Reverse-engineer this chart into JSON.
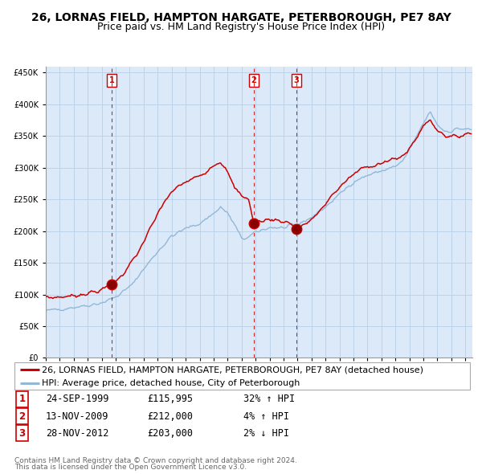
{
  "title": "26, LORNAS FIELD, HAMPTON HARGATE, PETERBOROUGH, PE7 8AY",
  "subtitle": "Price paid vs. HM Land Registry's House Price Index (HPI)",
  "legend_line1": "26, LORNAS FIELD, HAMPTON HARGATE, PETERBOROUGH, PE7 8AY (detached house)",
  "legend_line2": "HPI: Average price, detached house, City of Peterborough",
  "sale_events": [
    {
      "label": "1",
      "date": "24-SEP-1999",
      "price": 115995,
      "price_str": "£115,995",
      "pct": "32%",
      "dir": "↑",
      "year": 1999.73
    },
    {
      "label": "2",
      "date": "13-NOV-2009",
      "price": 212000,
      "price_str": "£212,000",
      "pct": "4%",
      "dir": "↑",
      "year": 2009.87
    },
    {
      "label": "3",
      "date": "28-NOV-2012",
      "price": 203000,
      "price_str": "£203,000",
      "pct": "2%",
      "dir": "↓",
      "year": 2012.91
    }
  ],
  "footer_line1": "Contains HM Land Registry data © Crown copyright and database right 2024.",
  "footer_line2": "This data is licensed under the Open Government Licence v3.0.",
  "ylim": [
    0,
    460000
  ],
  "xlim_start": 1995.0,
  "xlim_end": 2025.5,
  "plot_bg_color": "#dce9f8",
  "grid_color": "#b8cfe8",
  "red_line_color": "#cc0000",
  "blue_line_color": "#92b8d8",
  "dashed_line_color": "#cc0000",
  "marker_color": "#aa0000",
  "title_fontsize": 10,
  "subtitle_fontsize": 9,
  "tick_fontsize": 7,
  "legend_fontsize": 8,
  "table_fontsize": 8.5,
  "footer_fontsize": 6.5
}
